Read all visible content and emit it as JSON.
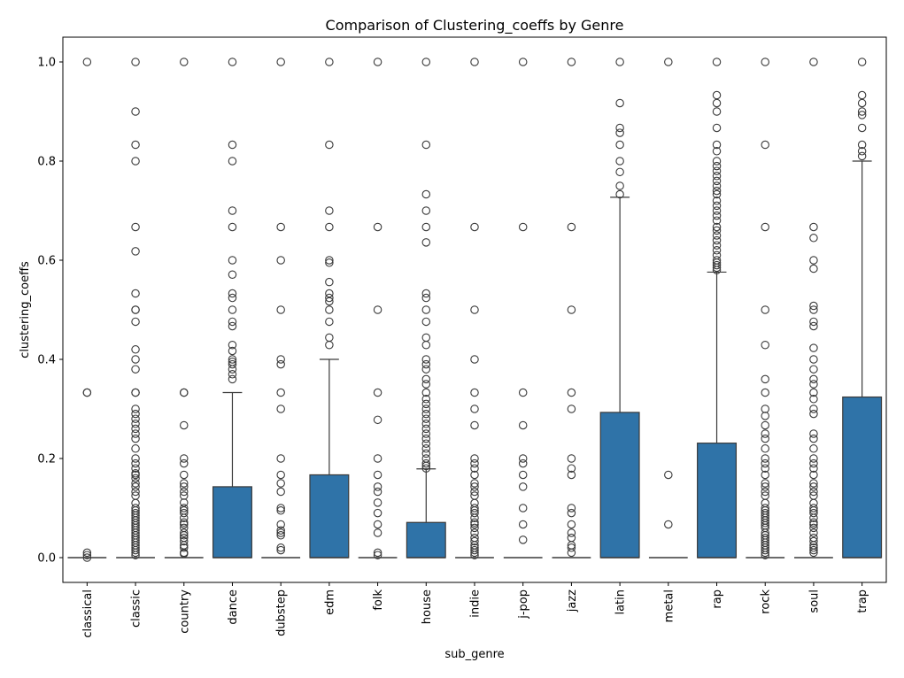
{
  "chart_data": {
    "type": "box",
    "title": "Comparison of Clustering_coeffs by Genre",
    "xlabel": "sub_genre",
    "ylabel": "clustering_coeffs",
    "ylim": [
      -0.05,
      1.05
    ],
    "yticks": [
      0.0,
      0.2,
      0.4,
      0.6,
      0.8,
      1.0
    ],
    "ytick_labels": [
      "0.0",
      "0.2",
      "0.4",
      "0.6",
      "0.8",
      "1.0"
    ],
    "box_color": "#2f73a8",
    "edge_color": "#3a3a3a",
    "grid": false,
    "categories": [
      "classical",
      "classic",
      "country",
      "dance",
      "dubstep",
      "edm",
      "folk",
      "house",
      "indie",
      "j-pop",
      "jazz",
      "latin",
      "metal",
      "rap",
      "rock",
      "soul",
      "trap"
    ],
    "boxes": [
      {
        "q1": 0,
        "median": 0,
        "q3": 0,
        "whisker_low": 0,
        "whisker_high": 0,
        "outliers": [
          1.0,
          0.333,
          0.333,
          0.01,
          0.005,
          0.0
        ]
      },
      {
        "q1": 0,
        "median": 0,
        "q3": 0,
        "whisker_low": 0,
        "whisker_high": 0,
        "outliers": [
          1.0,
          0.9,
          0.833,
          0.8,
          0.667,
          0.618,
          0.533,
          0.5,
          0.5,
          0.476,
          0.42,
          0.4,
          0.38,
          0.333,
          0.333,
          0.3,
          0.29,
          0.28,
          0.27,
          0.26,
          0.25,
          0.24,
          0.22,
          0.2,
          0.19,
          0.18,
          0.17,
          0.167,
          0.16,
          0.15,
          0.143,
          0.133,
          0.125,
          0.11,
          0.1,
          0.095,
          0.09,
          0.085,
          0.08,
          0.075,
          0.07,
          0.065,
          0.06,
          0.055,
          0.05,
          0.045,
          0.04,
          0.035,
          0.03,
          0.025,
          0.02,
          0.015,
          0.01,
          0.005
        ]
      },
      {
        "q1": 0,
        "median": 0,
        "q3": 0,
        "whisker_low": 0,
        "whisker_high": 0,
        "outliers": [
          1.0,
          0.333,
          0.333,
          0.267,
          0.2,
          0.19,
          0.167,
          0.15,
          0.143,
          0.133,
          0.125,
          0.111,
          0.1,
          0.095,
          0.09,
          0.08,
          0.071,
          0.067,
          0.06,
          0.05,
          0.045,
          0.04,
          0.033,
          0.025,
          0.02,
          0.01,
          0.008
        ]
      },
      {
        "q1": 0,
        "median": 0,
        "q3": 0.143,
        "whisker_low": 0,
        "whisker_high": 0.333,
        "outliers": [
          1.0,
          0.833,
          0.8,
          0.7,
          0.667,
          0.6,
          0.571,
          0.533,
          0.524,
          0.5,
          0.476,
          0.467,
          0.429,
          0.417,
          0.4,
          0.395,
          0.39,
          0.38,
          0.37,
          0.36
        ]
      },
      {
        "q1": 0,
        "median": 0,
        "q3": 0,
        "whisker_low": 0,
        "whisker_high": 0,
        "outliers": [
          1.0,
          0.667,
          0.6,
          0.5,
          0.4,
          0.39,
          0.333,
          0.3,
          0.2,
          0.167,
          0.15,
          0.133,
          0.1,
          0.095,
          0.067,
          0.055,
          0.05,
          0.045,
          0.02,
          0.015
        ]
      },
      {
        "q1": 0,
        "median": 0,
        "q3": 0.167,
        "whisker_low": 0,
        "whisker_high": 0.4,
        "outliers": [
          1.0,
          0.833,
          0.7,
          0.667,
          0.6,
          0.595,
          0.556,
          0.533,
          0.524,
          0.517,
          0.5,
          0.476,
          0.444,
          0.429
        ]
      },
      {
        "q1": 0,
        "median": 0,
        "q3": 0,
        "whisker_low": 0,
        "whisker_high": 0,
        "outliers": [
          1.0,
          0.667,
          0.5,
          0.333,
          0.278,
          0.2,
          0.167,
          0.143,
          0.133,
          0.111,
          0.09,
          0.067,
          0.05,
          0.01,
          0.005
        ]
      },
      {
        "q1": 0,
        "median": 0,
        "q3": 0.071,
        "whisker_low": 0,
        "whisker_high": 0.179,
        "outliers": [
          1.0,
          0.833,
          0.733,
          0.7,
          0.667,
          0.636,
          0.533,
          0.524,
          0.5,
          0.476,
          0.444,
          0.429,
          0.4,
          0.39,
          0.38,
          0.36,
          0.35,
          0.333,
          0.32,
          0.31,
          0.3,
          0.29,
          0.28,
          0.27,
          0.26,
          0.25,
          0.24,
          0.23,
          0.22,
          0.21,
          0.2,
          0.19,
          0.185,
          0.18
        ]
      },
      {
        "q1": 0,
        "median": 0,
        "q3": 0,
        "whisker_low": 0,
        "whisker_high": 0,
        "outliers": [
          1.0,
          0.667,
          0.5,
          0.4,
          0.333,
          0.3,
          0.267,
          0.2,
          0.19,
          0.18,
          0.167,
          0.15,
          0.143,
          0.133,
          0.125,
          0.11,
          0.1,
          0.095,
          0.09,
          0.08,
          0.071,
          0.067,
          0.06,
          0.05,
          0.04,
          0.033,
          0.025,
          0.02,
          0.015,
          0.01,
          0.005
        ]
      },
      {
        "q1": 0,
        "median": 0,
        "q3": 0,
        "whisker_low": 0,
        "whisker_high": 0,
        "outliers": [
          1.0,
          0.667,
          0.333,
          0.267,
          0.2,
          0.19,
          0.167,
          0.143,
          0.1,
          0.067,
          0.036
        ]
      },
      {
        "q1": 0,
        "median": 0,
        "q3": 0,
        "whisker_low": 0,
        "whisker_high": 0,
        "outliers": [
          1.0,
          0.667,
          0.5,
          0.333,
          0.3,
          0.2,
          0.18,
          0.167,
          0.1,
          0.09,
          0.067,
          0.05,
          0.04,
          0.025,
          0.02,
          0.01
        ]
      },
      {
        "q1": 0,
        "median": 0,
        "q3": 0.293,
        "whisker_low": 0,
        "whisker_high": 0.727,
        "outliers": [
          1.0,
          0.917,
          0.867,
          0.857,
          0.833,
          0.8,
          0.778,
          0.75,
          0.733
        ]
      },
      {
        "q1": 0,
        "median": 0,
        "q3": 0,
        "whisker_low": 0,
        "whisker_high": 0,
        "outliers": [
          1.0,
          0.167,
          0.067
        ]
      },
      {
        "q1": 0,
        "median": 0,
        "q3": 0.231,
        "whisker_low": 0,
        "whisker_high": 0.576,
        "outliers": [
          1.0,
          0.933,
          0.917,
          0.9,
          0.867,
          0.833,
          0.82,
          0.8,
          0.79,
          0.78,
          0.77,
          0.76,
          0.75,
          0.74,
          0.733,
          0.72,
          0.71,
          0.7,
          0.69,
          0.68,
          0.667,
          0.66,
          0.65,
          0.64,
          0.63,
          0.62,
          0.61,
          0.6,
          0.595,
          0.59,
          0.585,
          0.58
        ]
      },
      {
        "q1": 0,
        "median": 0,
        "q3": 0,
        "whisker_low": 0,
        "whisker_high": 0,
        "outliers": [
          1.0,
          0.833,
          0.667,
          0.5,
          0.429,
          0.36,
          0.333,
          0.3,
          0.286,
          0.267,
          0.25,
          0.24,
          0.22,
          0.2,
          0.19,
          0.18,
          0.167,
          0.15,
          0.143,
          0.133,
          0.125,
          0.11,
          0.1,
          0.095,
          0.09,
          0.085,
          0.08,
          0.075,
          0.07,
          0.065,
          0.06,
          0.05,
          0.045,
          0.04,
          0.035,
          0.03,
          0.025,
          0.02,
          0.015,
          0.01,
          0.005
        ]
      },
      {
        "q1": 0,
        "median": 0,
        "q3": 0,
        "whisker_low": 0,
        "whisker_high": 0,
        "outliers": [
          1.0,
          0.667,
          0.645,
          0.6,
          0.583,
          0.508,
          0.5,
          0.476,
          0.467,
          0.423,
          0.4,
          0.38,
          0.36,
          0.35,
          0.333,
          0.32,
          0.3,
          0.29,
          0.25,
          0.24,
          0.22,
          0.2,
          0.19,
          0.18,
          0.167,
          0.15,
          0.143,
          0.133,
          0.125,
          0.11,
          0.1,
          0.095,
          0.09,
          0.08,
          0.071,
          0.067,
          0.06,
          0.05,
          0.04,
          0.033,
          0.025,
          0.02,
          0.015,
          0.01
        ]
      },
      {
        "q1": 0,
        "median": 0,
        "q3": 0.324,
        "whisker_low": 0,
        "whisker_high": 0.8,
        "outliers": [
          1.0,
          0.933,
          0.917,
          0.9,
          0.893,
          0.867,
          0.833,
          0.82,
          0.81
        ]
      }
    ]
  }
}
